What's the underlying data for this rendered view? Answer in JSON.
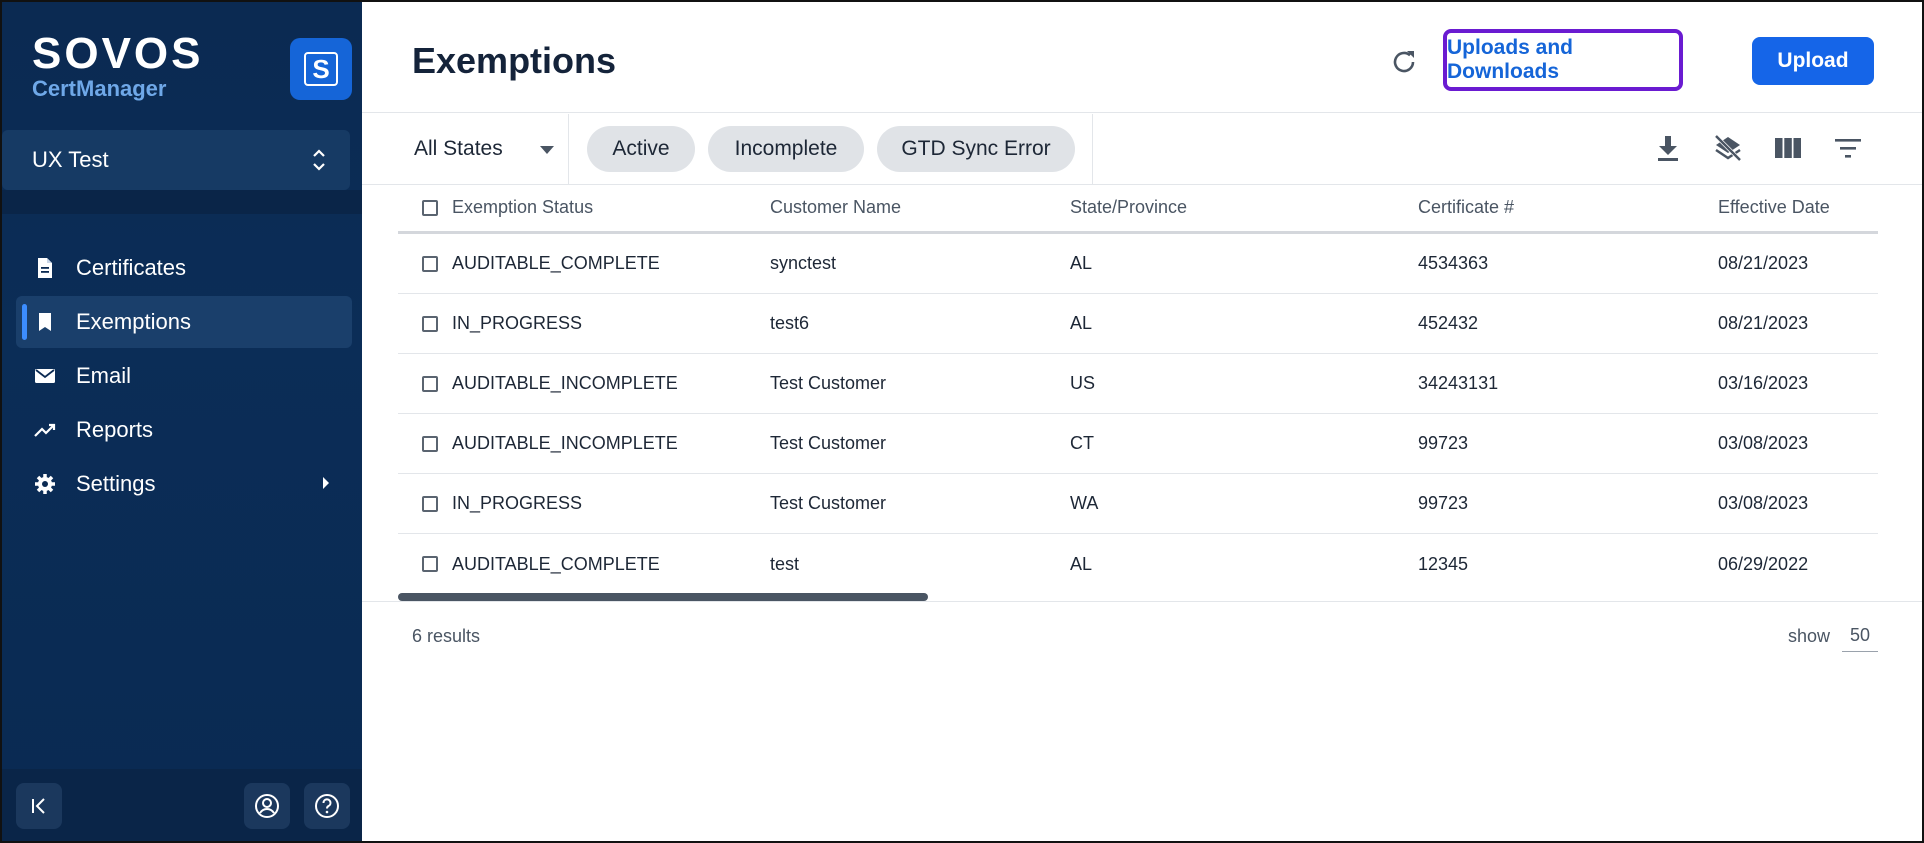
{
  "brand": {
    "name": "SOVOS",
    "product": "CertManager",
    "logo_letter": "S"
  },
  "org": {
    "name": "UX Test"
  },
  "nav": {
    "items": [
      {
        "label": "Certificates",
        "icon": "document-icon"
      },
      {
        "label": "Exemptions",
        "icon": "bookmark-icon",
        "active": true
      },
      {
        "label": "Email",
        "icon": "mail-icon"
      },
      {
        "label": "Reports",
        "icon": "trending-icon"
      },
      {
        "label": "Settings",
        "icon": "gear-icon",
        "has_submenu": true
      }
    ]
  },
  "header": {
    "title": "Exemptions",
    "uploads_downloads_label": "Uploads and Downloads",
    "upload_label": "Upload"
  },
  "filters": {
    "state_select": "All States",
    "chips": [
      "Active",
      "Incomplete",
      "GTD Sync Error"
    ]
  },
  "table": {
    "columns": [
      "Exemption Status",
      "Customer Name",
      "State/Province",
      "Certificate #",
      "Effective Date"
    ],
    "rows": [
      [
        "AUDITABLE_COMPLETE",
        "synctest",
        "AL",
        "4534363",
        "08/21/2023"
      ],
      [
        "IN_PROGRESS",
        "test6",
        "AL",
        "452432",
        "08/21/2023"
      ],
      [
        "AUDITABLE_INCOMPLETE",
        "Test Customer",
        "US",
        "34243131",
        "03/16/2023"
      ],
      [
        "AUDITABLE_INCOMPLETE",
        "Test Customer",
        "CT",
        "99723",
        "03/08/2023"
      ],
      [
        "IN_PROGRESS",
        "Test Customer",
        "WA",
        "99723",
        "03/08/2023"
      ],
      [
        "AUDITABLE_COMPLETE",
        "test",
        "AL",
        "12345",
        "06/29/2022"
      ]
    ]
  },
  "footer": {
    "results": "6 results",
    "show_label": "show",
    "show_value": "50"
  },
  "colors": {
    "sidebar": "#0b2a52",
    "accent": "#1565e8",
    "highlight_border": "#6a1bd1"
  }
}
